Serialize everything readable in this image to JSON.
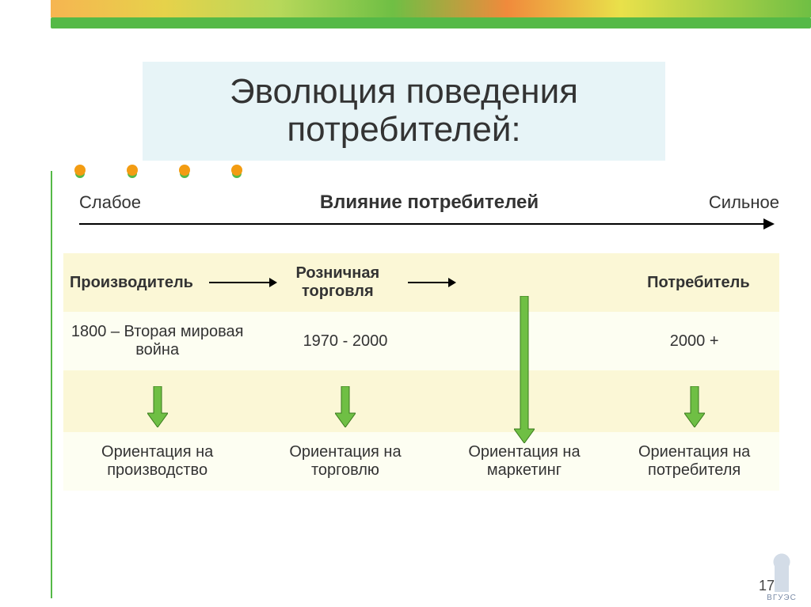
{
  "colors": {
    "titleBand": "#e7f4f7",
    "accentBar": "#55b947",
    "sideLine": "#55b947",
    "dots": [
      "#f39c12",
      "#f39c12",
      "#f39c12",
      "#f39c12"
    ],
    "dotShadow": "#55b947",
    "band1": "#fbf7d6",
    "band2": "#fdfef2",
    "greenArrow": "#6fbf44",
    "greenArrowStroke": "#3a7a1d",
    "topBand": "linear-gradient(90deg,#f6b551 0%,#e6d24a 15%,#b7d85a 30%,#6fbf44 45%,#f08a3c 60%,#e9e14a 75%,#6fbf44 100%)"
  },
  "title": "Эволюция поведения потребителей:",
  "influence": {
    "weak": "Слабое",
    "label": "Влияние потребителей",
    "strong": "Сильное"
  },
  "headers": [
    "Производитель",
    "Розничная торговля",
    "",
    "Потребитель"
  ],
  "periods": [
    "1800 – Вторая мировая война",
    "1970 - 2000",
    "",
    "2000 +"
  ],
  "orientations": [
    "Ориентация на производство",
    "Ориентация на торговлю",
    "Ориентация на маркетинг",
    "Ориентация на потребителя"
  ],
  "pageNumber": "17",
  "logoText": "ВГУЭС",
  "arrowSvg": {
    "short": {
      "h": 52,
      "stem": 34
    },
    "long": {
      "h": 186,
      "stem": 168
    }
  }
}
